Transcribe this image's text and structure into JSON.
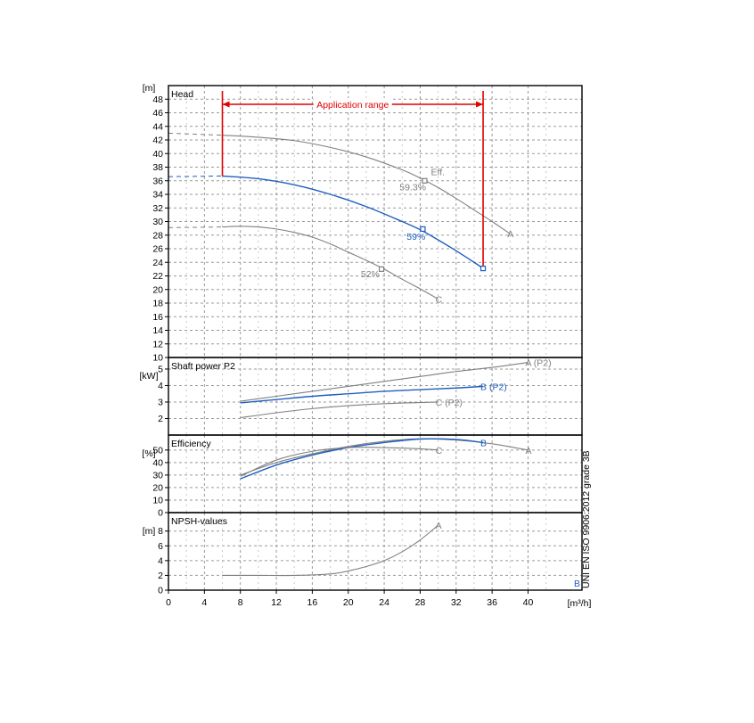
{
  "chart_data": {
    "type": "line",
    "x_unit": "[m³/h]",
    "x_range": [
      0,
      46
    ],
    "x_ticks": [
      "0",
      "4",
      "8",
      "12",
      "16",
      "20",
      "24",
      "28",
      "32",
      "36",
      "40"
    ],
    "colors": {
      "grey": "#808080",
      "blue": "#1f5fbf",
      "red": "#e00000"
    },
    "application_range": {
      "label": "Application range",
      "x_start": 6,
      "x_end": 35
    },
    "side_note": "UNI EN ISO 9906:2012 grade 3B",
    "panels": [
      {
        "title": "Head",
        "unit": "[m]",
        "ylim": [
          10,
          50
        ],
        "ticks": [
          "10",
          "12",
          "14",
          "16",
          "18",
          "20",
          "22",
          "24",
          "26",
          "28",
          "30",
          "32",
          "34",
          "36",
          "38",
          "40",
          "42",
          "44",
          "46",
          "48"
        ],
        "series": [
          {
            "name": "A",
            "color": "grey",
            "dashed_x": [
              0,
              6
            ],
            "dashed_y": [
              43,
              42.7
            ],
            "x": [
              6,
              10,
              14,
              18,
              22,
              26,
              28,
              30,
              32,
              34,
              36,
              38
            ],
            "y": [
              42.7,
              42.4,
              41.9,
              40.9,
              39.5,
              37.6,
              36.4,
              35.0,
              33.4,
              31.7,
              30.0,
              28.2
            ],
            "end_label": "A"
          },
          {
            "name": "B",
            "color": "blue",
            "dashed_x": [
              0,
              6
            ],
            "dashed_y": [
              36.6,
              36.7
            ],
            "x": [
              6,
              10,
              14,
              18,
              22,
              26,
              28,
              30,
              32,
              34,
              35
            ],
            "y": [
              36.7,
              36.3,
              35.4,
              34.0,
              32.2,
              30.0,
              28.8,
              27.3,
              25.7,
              24.0,
              23.1
            ]
          },
          {
            "name": "C",
            "color": "grey",
            "dashed_x": [
              0,
              6
            ],
            "dashed_y": [
              29.1,
              29.2
            ],
            "x": [
              6,
              8,
              10,
              12,
              14,
              16,
              18,
              20,
              22,
              24,
              26,
              28,
              30
            ],
            "y": [
              29.2,
              29.3,
              29.2,
              28.9,
              28.4,
              27.7,
              26.7,
              25.5,
              24.3,
              23.0,
              21.5,
              20.1,
              18.6
            ],
            "end_label": "C"
          }
        ],
        "annotations": [
          {
            "text": "Eff.",
            "x": 29.2,
            "y": 36.8,
            "color": "grey"
          },
          {
            "text": "59.3%",
            "x": 25.7,
            "y": 34.6,
            "color": "grey"
          },
          {
            "text": "59%",
            "x": 26.5,
            "y": 27.3,
            "color": "blue"
          },
          {
            "text": "52%",
            "x": 21.4,
            "y": 21.8,
            "color": "grey"
          }
        ],
        "markers": [
          {
            "x": 28.5,
            "y": 36.0,
            "color": "grey"
          },
          {
            "x": 28.3,
            "y": 28.9,
            "color": "blue"
          },
          {
            "x": 23.7,
            "y": 23.0,
            "color": "grey"
          },
          {
            "x": 35.0,
            "y": 23.1,
            "color": "blue"
          }
        ]
      },
      {
        "title": "Shaft power P2",
        "unit": "[kW]",
        "ylim": [
          1,
          5.7
        ],
        "ticks": [
          "2",
          "3",
          "4",
          "5"
        ],
        "series": [
          {
            "name": "A (P2)",
            "color": "grey",
            "x": [
              8,
              12,
              16,
              20,
              24,
              28,
              32,
              36,
              40
            ],
            "y": [
              3.05,
              3.35,
              3.65,
              3.95,
              4.25,
              4.55,
              4.85,
              5.1,
              5.4
            ],
            "end_label": "A (P2)"
          },
          {
            "name": "B (P2)",
            "color": "blue",
            "x": [
              8,
              12,
              16,
              20,
              24,
              28,
              32,
              35
            ],
            "y": [
              2.95,
              3.15,
              3.35,
              3.5,
              3.65,
              3.75,
              3.85,
              3.95
            ],
            "end_label": "B (P2)"
          },
          {
            "name": "C (P2)",
            "color": "grey",
            "x": [
              8,
              12,
              16,
              20,
              24,
              28,
              30
            ],
            "y": [
              2.05,
              2.35,
              2.6,
              2.78,
              2.9,
              2.97,
              3.0
            ],
            "end_label": "C (P2)"
          }
        ]
      },
      {
        "title": "Efficiency",
        "unit": "[%]",
        "ylim": [
          0,
          62
        ],
        "ticks": [
          "0",
          "10",
          "20",
          "30",
          "40",
          "50"
        ],
        "series": [
          {
            "name": "A",
            "color": "grey",
            "x": [
              8,
              12,
              16,
              20,
              24,
              28,
              32,
              36,
              40
            ],
            "y": [
              30,
              40,
              47,
              53,
              57,
              59,
              58,
              55,
              50
            ],
            "end_label": "A"
          },
          {
            "name": "B",
            "color": "blue",
            "x": [
              8,
              12,
              16,
              20,
              24,
              28,
              32,
              35
            ],
            "y": [
              27,
              38,
              46,
              52,
              56,
              58.8,
              58.5,
              56
            ],
            "end_label": "B"
          },
          {
            "name": "C",
            "color": "grey",
            "x": [
              8,
              12,
              16,
              20,
              24,
              28,
              30
            ],
            "y": [
              29,
              42,
              49,
              52,
              52,
              51,
              50
            ],
            "end_label": "C"
          }
        ]
      },
      {
        "title": "NPSH-values",
        "unit": "[m]",
        "ylim": [
          0,
          10.5
        ],
        "ticks": [
          "0",
          "2",
          "4",
          "6",
          "8"
        ],
        "series": [
          {
            "name": "A",
            "color": "grey",
            "x": [
              6,
              10,
              14,
              18,
              20,
              22,
              24,
              26,
              28,
              30
            ],
            "y": [
              2.0,
              2.0,
              2.0,
              2.2,
              2.6,
              3.2,
              4.0,
              5.2,
              6.8,
              8.8
            ],
            "end_label": "A"
          }
        ],
        "extra_label": {
          "text": "B",
          "color": "blue"
        }
      }
    ]
  }
}
